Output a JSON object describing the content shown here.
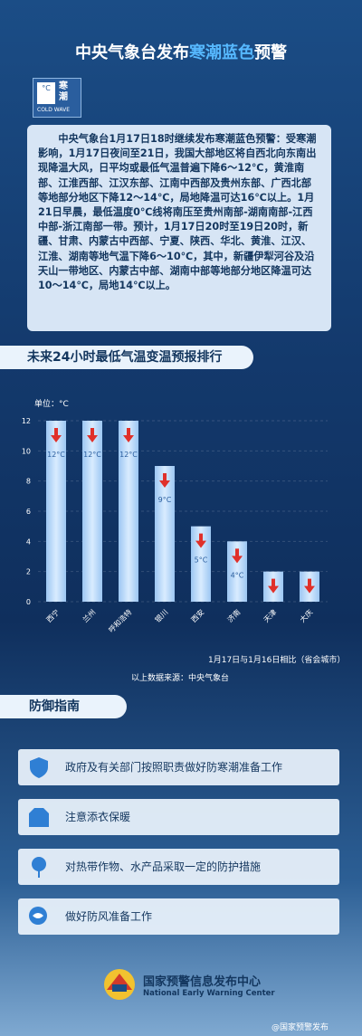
{
  "header": {
    "title_parts": [
      "中央气象台发布",
      "寒潮蓝色",
      "预警"
    ],
    "icon": {
      "unit": "°C",
      "name": "寒潮",
      "english": "COLD WAVE"
    }
  },
  "bulletin": "中央气象台1月17日18时继续发布寒潮蓝色预警：受寒潮影响，1月17日夜间至21日，我国大部地区将自西北向东南出现降温大风，日平均或最低气温普遍下降6～12℃，黄淮南部、江淮西部、江汉东部、江南中西部及贵州东部、广西北部等地部分地区下降12～14℃，局地降温可达16℃以上。1月21日早晨，最低温度0℃线将南压至贵州南部-湖南南部-江西中部-浙江南部一带。预计，1月17日20时至19日20时，新疆、甘肃、内蒙古中西部、宁夏、陕西、华北、黄淮、江汉、江淮、湖南等地气温下降6～10℃，其中，新疆伊犁河谷及沿天山一带地区、内蒙古中部、湖南中部等地部分地区降温可达10～14℃，局地14℃以上。",
  "chart_data": {
    "type": "bar",
    "title": "未来24小时最低气温变温预报排行",
    "unit_label": "单位：°C",
    "categories": [
      "西宁",
      "兰州",
      "呼和浩特",
      "银川",
      "西安",
      "济南",
      "天津",
      "大庆"
    ],
    "values": [
      12,
      12,
      12,
      9,
      5,
      4,
      2,
      2
    ],
    "value_labels": [
      "12°C",
      "12°C",
      "12°C",
      "9°C",
      "5°C",
      "4°C",
      null,
      null
    ],
    "ylim": [
      0,
      12
    ],
    "yticks": [
      0,
      2,
      4,
      6,
      8,
      10,
      12
    ],
    "grid": true,
    "color": "#d9ecff",
    "note": "1月17日与1月16日相比（省会城市）",
    "source": "以上数据来源：中央气象台"
  },
  "guide": {
    "title": "防御指南",
    "items": [
      "政府及有关部门按照职责做好防寒潮准备工作",
      "注意添衣保暖",
      "对热带作物、水产品采取一定的防护措施",
      "做好防风准备工作"
    ]
  },
  "footer": {
    "org": "国家预警信息发布中心",
    "org_en": "National Early Warning Center",
    "watermark": "@国家预警发布"
  }
}
